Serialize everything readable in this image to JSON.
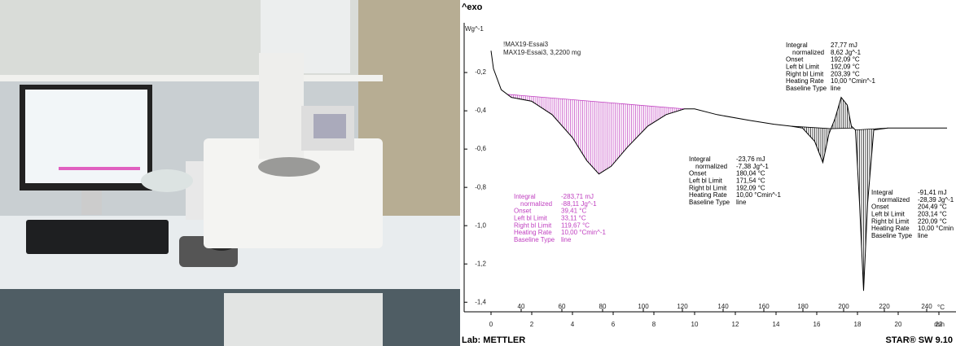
{
  "chart_data": {
    "type": "line",
    "title": "^exo",
    "ylabel": "Wg^-1",
    "xlabel": "min",
    "temp_unit": "°C",
    "footer_left": "Lab: METTLER",
    "footer_right": "STAR® SW 9.10",
    "legend_lines": [
      "!MAX19-Essai3",
      "MAX19-Essai3, 3,2200 mg"
    ],
    "xlim": [
      0,
      22.6
    ],
    "ylim": [
      -1.45,
      0.03
    ],
    "xticks": [
      0,
      2,
      4,
      6,
      8,
      10,
      12,
      14,
      16,
      18,
      20,
      22
    ],
    "yticks": [
      {
        "value": -0.2,
        "label": "-0,2"
      },
      {
        "value": -0.4,
        "label": "-0,4"
      },
      {
        "value": -0.6,
        "label": "-0,6"
      },
      {
        "value": -0.8,
        "label": "-0,8"
      },
      {
        "value": -1.0,
        "label": "-1,0"
      },
      {
        "value": -1.2,
        "label": "-1,2"
      },
      {
        "value": -1.4,
        "label": "-1,4"
      }
    ],
    "temp_ticks": [
      {
        "value": 1.48,
        "label": "40"
      },
      {
        "value": 3.48,
        "label": "60"
      },
      {
        "value": 5.48,
        "label": "80"
      },
      {
        "value": 7.48,
        "label": "100"
      },
      {
        "value": 9.4,
        "label": "120"
      },
      {
        "value": 11.4,
        "label": "140"
      },
      {
        "value": 13.4,
        "label": "160"
      },
      {
        "value": 15.32,
        "label": "180"
      },
      {
        "value": 17.32,
        "label": "200"
      },
      {
        "value": 19.32,
        "label": "220"
      },
      {
        "value": 21.4,
        "label": "240"
      }
    ],
    "color": "#000000",
    "x": [
      0,
      0.12,
      0.5,
      1,
      2,
      3,
      4,
      4.7,
      5.3,
      5.9,
      6.7,
      7.7,
      8.6,
      9.5,
      10,
      11.1,
      12.7,
      13.9,
      14.7,
      15.3,
      15.9,
      16.3,
      16.6,
      16.9,
      17.2,
      17.5,
      17.7,
      17.9,
      18.1,
      18.3,
      18.5,
      18.8,
      19.5,
      20.7,
      22.4
    ],
    "values": [
      -0.086,
      -0.18,
      -0.29,
      -0.33,
      -0.35,
      -0.42,
      -0.54,
      -0.66,
      -0.73,
      -0.69,
      -0.59,
      -0.48,
      -0.42,
      -0.39,
      -0.39,
      -0.42,
      -0.45,
      -0.47,
      -0.48,
      -0.49,
      -0.56,
      -0.67,
      -0.52,
      -0.44,
      -0.33,
      -0.37,
      -0.48,
      -0.5,
      -0.88,
      -1.34,
      -0.88,
      -0.5,
      -0.49,
      -0.49,
      -0.49
    ],
    "blocks": [
      {
        "color": "#c040c0",
        "range": [
          0.8,
          9.5
        ],
        "rows": [
          [
            "Integral",
            "-283,71 mJ"
          ],
          [
            "normalized",
            "-88,11 Jg^-1"
          ],
          [
            "Onset",
            "39,41 °C"
          ],
          [
            "Left bl Limit",
            "33,11 °C"
          ],
          [
            "Right bl Limit",
            "119,67 °C"
          ],
          [
            "Heating Rate",
            "10,00 °Cmin^-1"
          ],
          [
            "Baseline Type",
            "line"
          ]
        ]
      },
      {
        "color": "#000000",
        "range": [
          14.7,
          16.7
        ],
        "rows": [
          [
            "Integral",
            "-23,76 mJ"
          ],
          [
            "normalized",
            "-7,38 Jg^-1"
          ],
          [
            "Onset",
            "180,04 °C"
          ],
          [
            "Left bl Limit",
            "171,54 °C"
          ],
          [
            "Right bl Limit",
            "192,09 °C"
          ],
          [
            "Heating Rate",
            "10,00 °Cmin^-1"
          ],
          [
            "Baseline Type",
            "line"
          ]
        ]
      },
      {
        "color": "#000000",
        "range": [
          16.7,
          17.8
        ],
        "rows": [
          [
            "Integral",
            "27,77 mJ"
          ],
          [
            "normalized",
            "8,62 Jg^-1"
          ],
          [
            "Onset",
            "192,09 °C"
          ],
          [
            "Left bl Limit",
            "192,09 °C"
          ],
          [
            "Right bl Limit",
            "203,39 °C"
          ],
          [
            "Heating Rate",
            "10,00 °Cmin^-1"
          ],
          [
            "Baseline Type",
            "line"
          ]
        ]
      },
      {
        "color": "#000000",
        "range": [
          17.9,
          19.5
        ],
        "rows": [
          [
            "Integral",
            "-91,41 mJ"
          ],
          [
            "normalized",
            "-28,39 Jg^-1"
          ],
          [
            "Onset",
            "204,49 °C"
          ],
          [
            "Left bl Limit",
            "203,14 °C"
          ],
          [
            "Right bl Limit",
            "220,09 °C"
          ],
          [
            "Heating Rate",
            "10,00 °Cmin"
          ],
          [
            "Baseline Type",
            "line"
          ]
        ]
      }
    ]
  }
}
